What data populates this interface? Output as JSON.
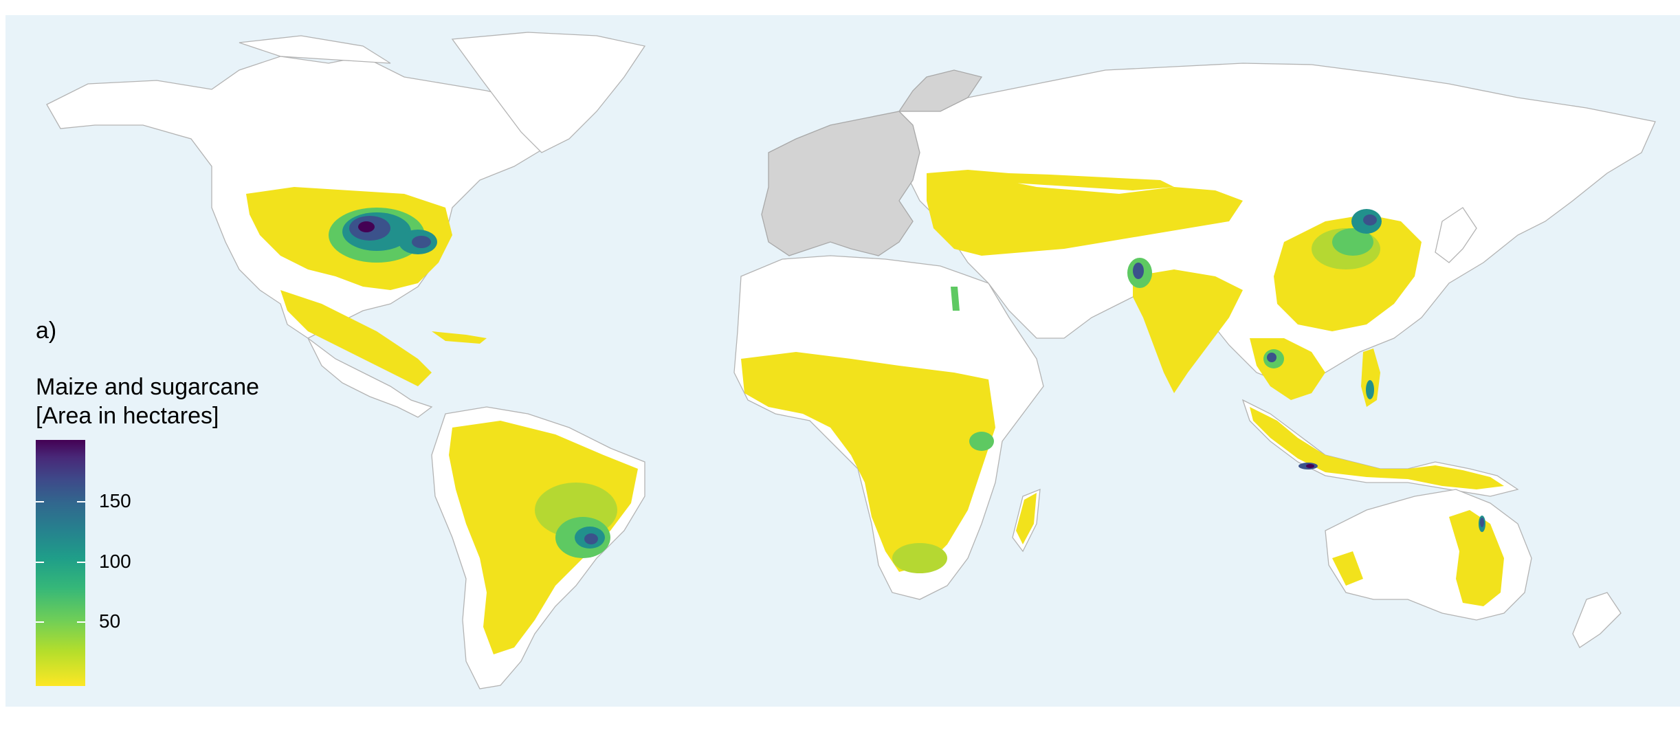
{
  "panel_label": "a)",
  "legend": {
    "title_line1": "Maize and sugarcane",
    "title_line2": "[Area in hectares]",
    "ticks": [
      "150",
      "100",
      "50"
    ],
    "scale": "viridis (reversed)",
    "colors": [
      "#fde725",
      "#b5de2b",
      "#6ece58",
      "#35b779",
      "#1f9e89",
      "#26828e",
      "#31688e",
      "#3e4989",
      "#482878",
      "#440154"
    ]
  },
  "map": {
    "ocean_color": "#e8f3f9",
    "land_color": "#ffffff",
    "excluded_region_color": "#d3d3d3",
    "excluded_region": "Europe"
  }
}
